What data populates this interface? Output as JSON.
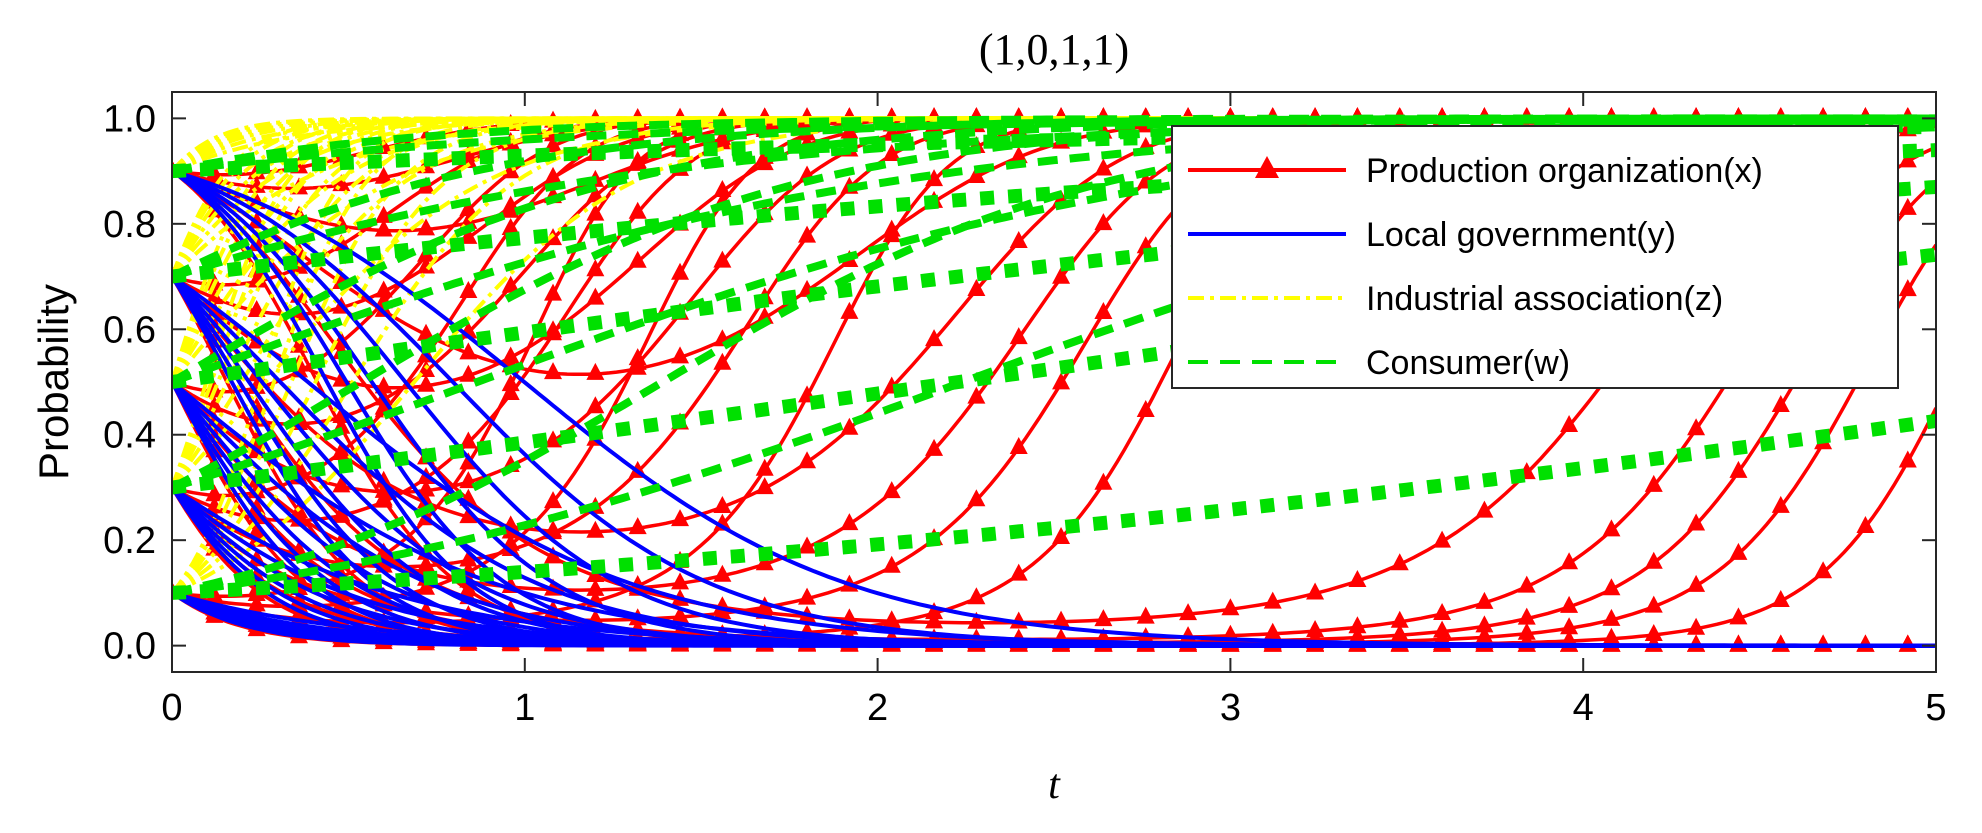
{
  "chart_data": {
    "type": "line",
    "title": "(1,0,1,1)",
    "xlabel": "t",
    "ylabel": "Probability",
    "xlim": [
      0,
      5
    ],
    "ylim": [
      -0.05,
      1.05
    ],
    "xticks": [
      0,
      1,
      2,
      3,
      4,
      5
    ],
    "xtick_labels": [
      "0",
      "1",
      "2",
      "3",
      "4",
      "5"
    ],
    "yticks": [
      0.0,
      0.2,
      0.4,
      0.6,
      0.8,
      1.0
    ],
    "ytick_labels": [
      "0.0",
      "0.2",
      "0.4",
      "0.6",
      "0.8",
      "1.0"
    ],
    "grid": false,
    "legend_position": "top-right",
    "initial_values": [
      0.1,
      0.3,
      0.5,
      0.7,
      0.9
    ],
    "final_values": {
      "Production organization(x)": 1.0,
      "Local government(y)": 0.0,
      "Industrial association(z)": 1.0,
      "Consumer(w)": 1.0
    },
    "series": [
      {
        "name": "Production organization(x)",
        "color": "#ff0000",
        "style": "solid",
        "marker": "triangle",
        "representative": {
          "x": [
            0,
            0.5,
            1.0,
            1.5,
            2.0,
            2.3,
            2.6,
            3.0,
            3.3,
            3.6,
            3.7
          ],
          "y": [
            0.1,
            0.06,
            0.035,
            0.02,
            0.01,
            0.005,
            0.02,
            0.09,
            0.19,
            0.36,
            0.47
          ]
        }
      },
      {
        "name": "Local government(y)",
        "color": "#0000ff",
        "style": "solid",
        "marker": "none",
        "representative": {
          "x": [
            0,
            0.5,
            1.0,
            1.5,
            2.0,
            3.0,
            4.0,
            5.0
          ],
          "y": [
            0.9,
            0.5,
            0.15,
            0.03,
            0.005,
            0.0,
            0.0,
            0.0
          ]
        }
      },
      {
        "name": "Industrial association(z)",
        "color": "#ffff00",
        "style": "dashdot",
        "marker": "none",
        "representative": {
          "x": [
            0,
            0.2,
            0.5,
            1.0,
            1.5,
            2.0,
            3.0,
            5.0
          ],
          "y": [
            0.1,
            0.55,
            0.87,
            0.97,
            0.99,
            1.0,
            1.0,
            1.0
          ]
        }
      },
      {
        "name": "Consumer(w)",
        "color": "#00e000",
        "style": "dashed",
        "marker": "none",
        "representative": {
          "x": [
            0,
            1,
            2,
            3,
            4,
            5
          ],
          "y": [
            0.1,
            0.2,
            0.33,
            0.55,
            0.79,
            0.97
          ]
        }
      }
    ]
  }
}
